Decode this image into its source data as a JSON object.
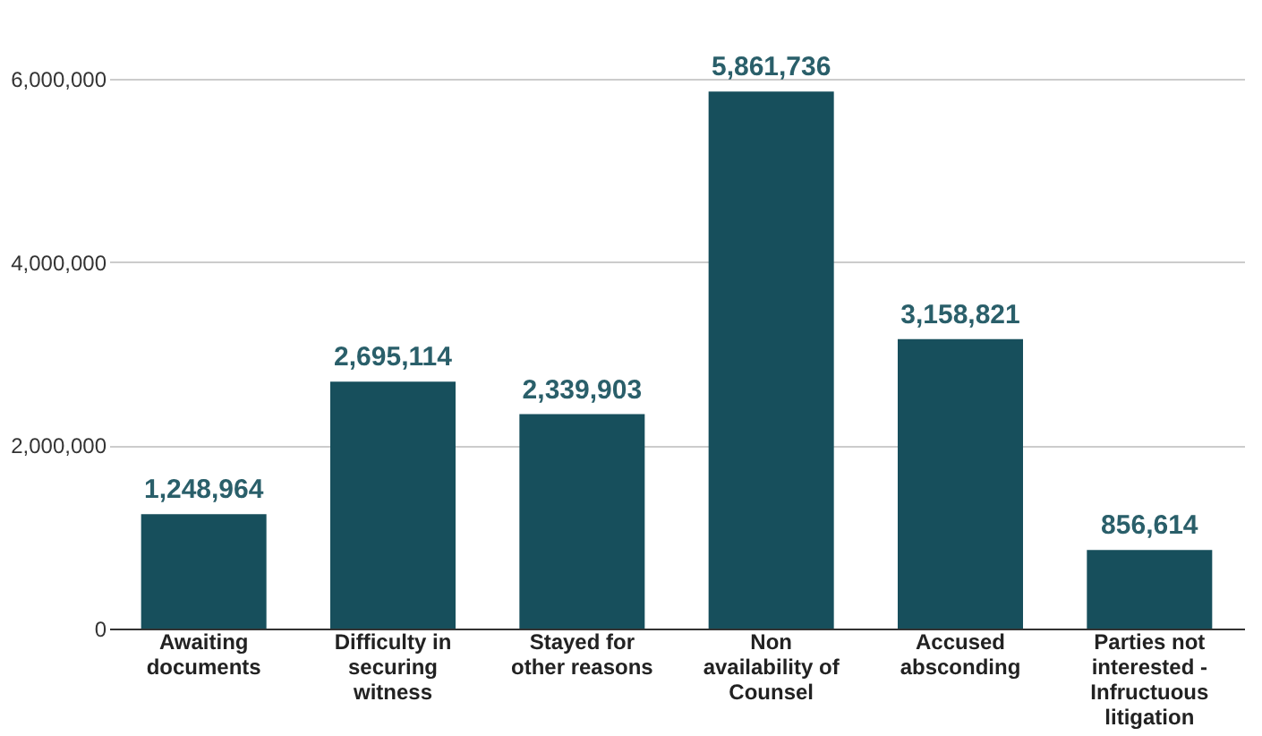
{
  "chart_data": {
    "type": "bar",
    "categories": [
      "Awaiting documents",
      "Difficulty in securing witness",
      "Stayed for other reasons",
      "Non availability of Counsel",
      "Accused absconding",
      "Parties not interested - Infructuous litigation"
    ],
    "values": [
      1248964,
      2695114,
      2339903,
      5861736,
      3158821,
      856614
    ],
    "color": "#174f5c",
    "ylim": [
      0,
      6000000
    ],
    "yticks": [
      {
        "value": 0,
        "label": "0"
      },
      {
        "value": 2000000,
        "label": "2,000,000"
      },
      {
        "value": 4000000,
        "label": "4,000,000"
      },
      {
        "value": 6000000,
        "label": "6,000,000"
      }
    ],
    "grid": "y",
    "value_labels": [
      "1,248,964",
      "2,695,114",
      "2,339,903",
      "5,861,736",
      "3,158,821",
      "856,614"
    ]
  }
}
